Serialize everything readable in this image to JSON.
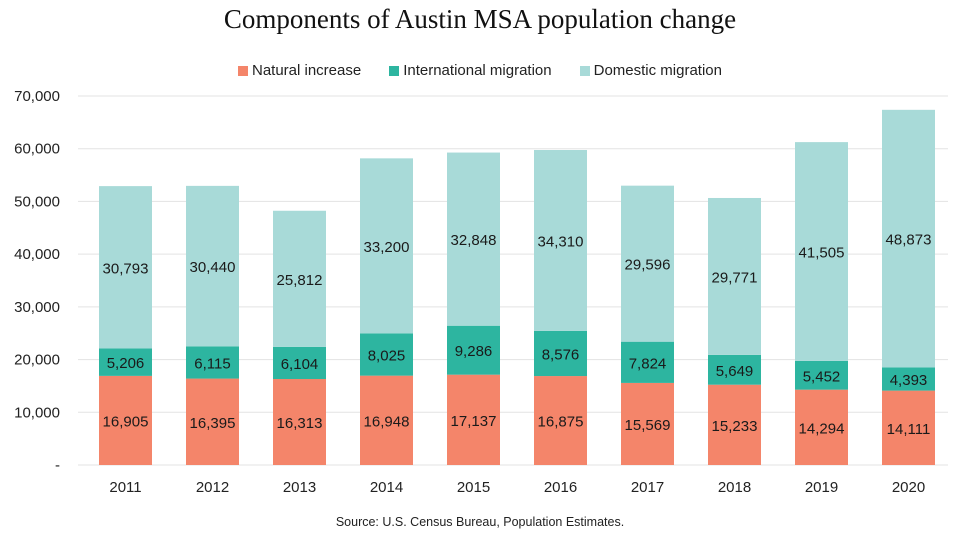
{
  "chart_data": {
    "type": "bar",
    "stacked": true,
    "title": "Components of Austin MSA population change",
    "xlabel": "",
    "ylabel": "",
    "ylim": [
      0,
      70000
    ],
    "yticks": [
      0,
      10000,
      20000,
      30000,
      40000,
      50000,
      60000,
      70000
    ],
    "ytick_labels": [
      "-",
      "10,000",
      "20,000",
      "30,000",
      "40,000",
      "50,000",
      "60,000",
      "70,000"
    ],
    "grid": true,
    "legend_position": "top-center",
    "categories": [
      "2011",
      "2012",
      "2013",
      "2014",
      "2015",
      "2016",
      "2017",
      "2018",
      "2019",
      "2020"
    ],
    "series": [
      {
        "name": "Natural increase",
        "color": "#f4856a",
        "values": [
          16905,
          16395,
          16313,
          16948,
          17137,
          16875,
          15569,
          15233,
          14294,
          14111
        ],
        "labels": [
          "16,905",
          "16,395",
          "16,313",
          "16,948",
          "17,137",
          "16,875",
          "15,569",
          "15,233",
          "14,294",
          "14,111"
        ]
      },
      {
        "name": "International migration",
        "color": "#2db5a0",
        "values": [
          5206,
          6115,
          6104,
          8025,
          9286,
          8576,
          7824,
          5649,
          5452,
          4393
        ],
        "labels": [
          "5,206",
          "6,115",
          "6,104",
          "8,025",
          "9,286",
          "8,576",
          "7,824",
          "5,649",
          "5,452",
          "4,393"
        ]
      },
      {
        "name": "Domestic migration",
        "color": "#a8dad8",
        "values": [
          30793,
          30440,
          25812,
          33200,
          32848,
          34310,
          29596,
          29771,
          41505,
          48873
        ],
        "labels": [
          "30,793",
          "30,440",
          "25,812",
          "33,200",
          "32,848",
          "34,310",
          "29,596",
          "29,771",
          "41,505",
          "48,873"
        ]
      }
    ],
    "source": "Source:  U.S. Census Bureau, Population Estimates."
  }
}
